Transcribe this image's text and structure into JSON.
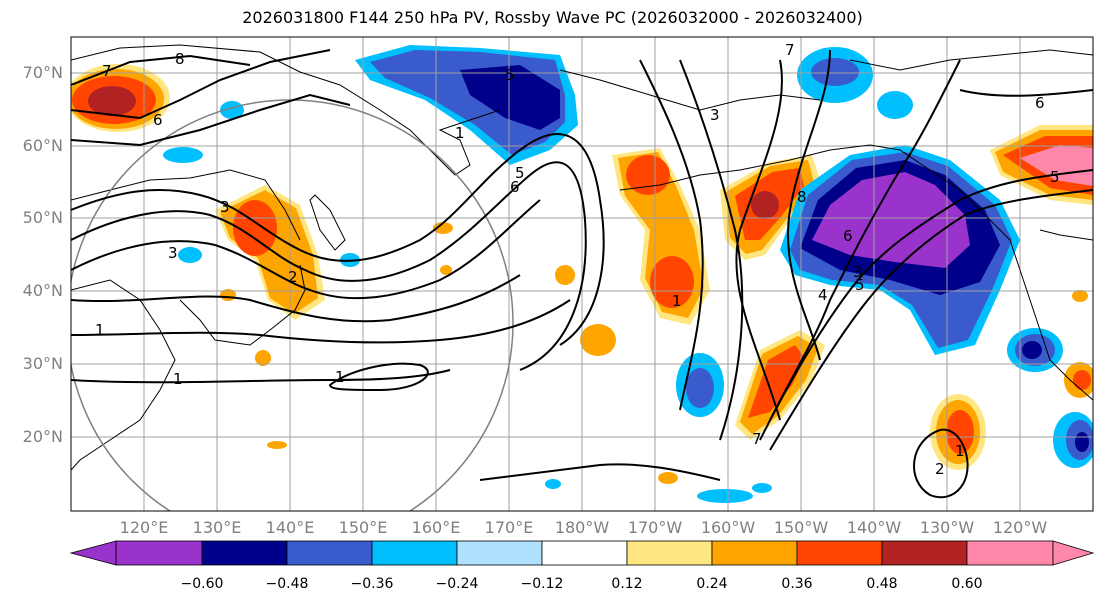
{
  "title": "2026031800 F144 250 hPa PV, Rossby Wave PC (2026032000 - 2026032400)",
  "lat_labels": [
    "70°N",
    "60°N",
    "50°N",
    "40°N",
    "30°N",
    "20°N"
  ],
  "lon_labels": [
    "120°E",
    "130°E",
    "140°E",
    "150°E",
    "160°E",
    "170°E",
    "180°W",
    "170°W",
    "160°W",
    "150°W",
    "140°W",
    "130°W",
    "120°W"
  ],
  "colorbar": {
    "ticks": [
      "−0.60",
      "−0.48",
      "−0.36",
      "−0.24",
      "−0.12",
      "0.12",
      "0.24",
      "0.36",
      "0.48",
      "0.60"
    ],
    "colors": [
      "#9933cc",
      "#00008b",
      "#3a5bcc",
      "#00bfff",
      "#b0e2ff",
      "#ffffff",
      "#ffe680",
      "#ffa500",
      "#ff4500",
      "#b22222",
      "#ff88aa"
    ]
  },
  "contour_labels": [
    "8",
    "7",
    "6",
    "3",
    "1",
    "1",
    "1",
    "6",
    "5",
    "5",
    "3",
    "7",
    "3",
    "8",
    "6",
    "3",
    "4",
    "5",
    "1",
    "1",
    "2",
    "2",
    "1",
    "5",
    "6",
    "7"
  ],
  "highlight_circle": "yes"
}
